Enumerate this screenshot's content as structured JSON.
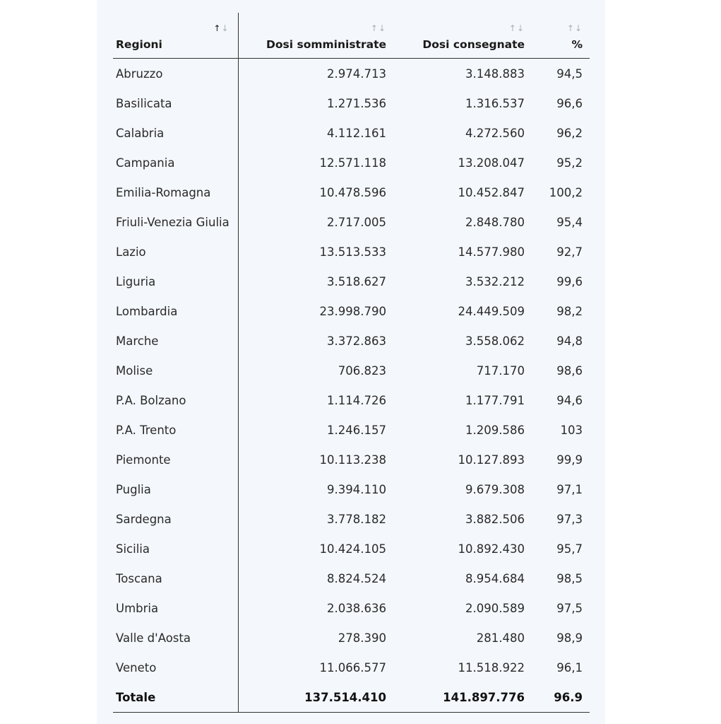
{
  "table": {
    "headers": {
      "regioni": "Regioni",
      "dosi_somministrate": "Dosi somministrate",
      "dosi_consegnate": "Dosi consegnate",
      "percentuale": "%"
    },
    "sort_glyph_up": "↑",
    "sort_glyph_down": "↓",
    "rows": [
      {
        "regione": "Abruzzo",
        "somministrate": "2.974.713",
        "consegnate": "3.148.883",
        "pct": "94,5"
      },
      {
        "regione": "Basilicata",
        "somministrate": "1.271.536",
        "consegnate": "1.316.537",
        "pct": "96,6"
      },
      {
        "regione": "Calabria",
        "somministrate": "4.112.161",
        "consegnate": "4.272.560",
        "pct": "96,2"
      },
      {
        "regione": "Campania",
        "somministrate": "12.571.118",
        "consegnate": "13.208.047",
        "pct": "95,2"
      },
      {
        "regione": "Emilia-Romagna",
        "somministrate": "10.478.596",
        "consegnate": "10.452.847",
        "pct": "100,2"
      },
      {
        "regione": "Friuli-Venezia Giulia",
        "somministrate": "2.717.005",
        "consegnate": "2.848.780",
        "pct": "95,4"
      },
      {
        "regione": "Lazio",
        "somministrate": "13.513.533",
        "consegnate": "14.577.980",
        "pct": "92,7"
      },
      {
        "regione": "Liguria",
        "somministrate": "3.518.627",
        "consegnate": "3.532.212",
        "pct": "99,6"
      },
      {
        "regione": "Lombardia",
        "somministrate": "23.998.790",
        "consegnate": "24.449.509",
        "pct": "98,2"
      },
      {
        "regione": "Marche",
        "somministrate": "3.372.863",
        "consegnate": "3.558.062",
        "pct": "94,8"
      },
      {
        "regione": "Molise",
        "somministrate": "706.823",
        "consegnate": "717.170",
        "pct": "98,6"
      },
      {
        "regione": "P.A. Bolzano",
        "somministrate": "1.114.726",
        "consegnate": "1.177.791",
        "pct": "94,6"
      },
      {
        "regione": "P.A. Trento",
        "somministrate": "1.246.157",
        "consegnate": "1.209.586",
        "pct": "103"
      },
      {
        "regione": "Piemonte",
        "somministrate": "10.113.238",
        "consegnate": "10.127.893",
        "pct": "99,9"
      },
      {
        "regione": "Puglia",
        "somministrate": "9.394.110",
        "consegnate": "9.679.308",
        "pct": "97,1"
      },
      {
        "regione": "Sardegna",
        "somministrate": "3.778.182",
        "consegnate": "3.882.506",
        "pct": "97,3"
      },
      {
        "regione": "Sicilia",
        "somministrate": "10.424.105",
        "consegnate": "10.892.430",
        "pct": "95,7"
      },
      {
        "regione": "Toscana",
        "somministrate": "8.824.524",
        "consegnate": "8.954.684",
        "pct": "98,5"
      },
      {
        "regione": "Umbria",
        "somministrate": "2.038.636",
        "consegnate": "2.090.589",
        "pct": "97,5"
      },
      {
        "regione": "Valle d'Aosta",
        "somministrate": "278.390",
        "consegnate": "281.480",
        "pct": "98,9"
      },
      {
        "regione": "Veneto",
        "somministrate": "11.066.577",
        "consegnate": "11.518.922",
        "pct": "96,1"
      }
    ],
    "total": {
      "regione": "Totale",
      "somministrate": "137.514.410",
      "consegnate": "141.897.776",
      "pct": "96.9"
    }
  }
}
